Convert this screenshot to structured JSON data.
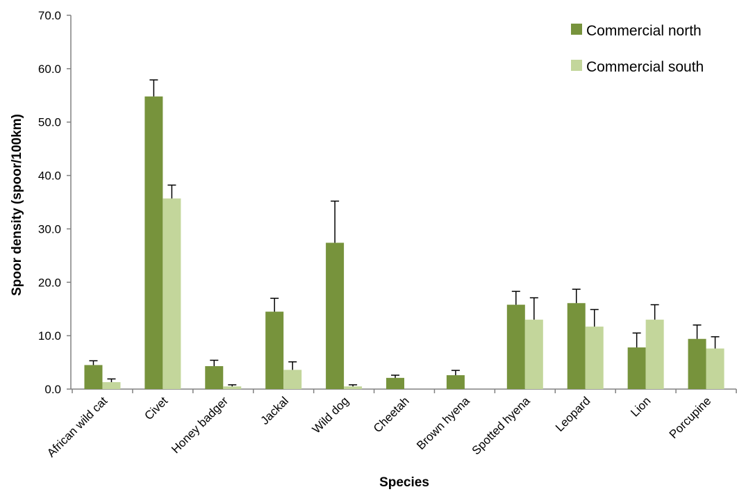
{
  "chart_data": {
    "type": "bar",
    "title": "",
    "xlabel": "Species",
    "ylabel": "Spoor density (spoor/100km)",
    "ylim": [
      0,
      70
    ],
    "yticks": [
      "0.0",
      "10.0",
      "20.0",
      "30.0",
      "40.0",
      "50.0",
      "60.0",
      "70.0"
    ],
    "grid": false,
    "legend_position": "top-right",
    "categories": [
      "African wild cat",
      "Civet",
      "Honey badger",
      "Jackal",
      "Wild dog",
      "Cheetah",
      "Brown hyena",
      "Spotted hyena",
      "Leopard",
      "Lion",
      "Porcupine"
    ],
    "series": [
      {
        "name": "Commercial north",
        "color": "#77933c",
        "values": [
          4.5,
          54.8,
          4.3,
          14.5,
          27.4,
          2.1,
          2.6,
          15.8,
          16.1,
          7.8,
          9.4
        ],
        "errors": [
          0.8,
          3.1,
          1.1,
          2.5,
          7.8,
          0.5,
          0.9,
          2.5,
          2.6,
          2.7,
          2.6
        ]
      },
      {
        "name": "Commercial south",
        "color": "#c3d69b",
        "values": [
          1.3,
          35.7,
          0.5,
          3.6,
          0.5,
          0,
          0,
          13.0,
          11.7,
          13.0,
          7.6
        ],
        "errors": [
          0.6,
          2.5,
          0.3,
          1.5,
          0.3,
          0,
          0,
          4.1,
          3.2,
          2.8,
          2.2
        ]
      }
    ]
  }
}
